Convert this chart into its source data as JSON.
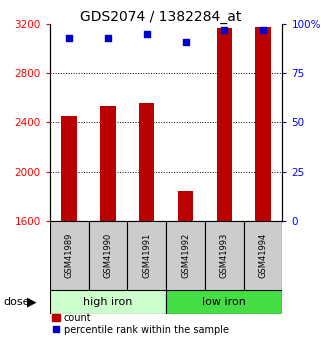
{
  "title": "GDS2074 / 1382284_at",
  "samples": [
    "GSM41989",
    "GSM41990",
    "GSM41991",
    "GSM41992",
    "GSM41993",
    "GSM41994"
  ],
  "counts": [
    2450,
    2530,
    2560,
    1840,
    3170,
    3180
  ],
  "percentile_ranks": [
    93,
    93,
    95,
    91,
    97,
    97
  ],
  "groups": [
    {
      "label": "high iron",
      "color": "#ccffcc"
    },
    {
      "label": "low iron",
      "color": "#44dd44"
    }
  ],
  "ylim_left": [
    1600,
    3200
  ],
  "ylim_right": [
    0,
    100
  ],
  "yticks_left": [
    1600,
    2000,
    2400,
    2800,
    3200
  ],
  "yticks_right": [
    0,
    25,
    50,
    75,
    100
  ],
  "bar_color": "#bb0000",
  "dot_color": "#0000cc",
  "bar_width": 0.4,
  "legend_count": "count",
  "legend_pct": "percentile rank within the sample",
  "title_fontsize": 10,
  "tick_fontsize": 7.5,
  "sample_fontsize": 6.0,
  "group_fontsize": 8,
  "legend_fontsize": 7
}
